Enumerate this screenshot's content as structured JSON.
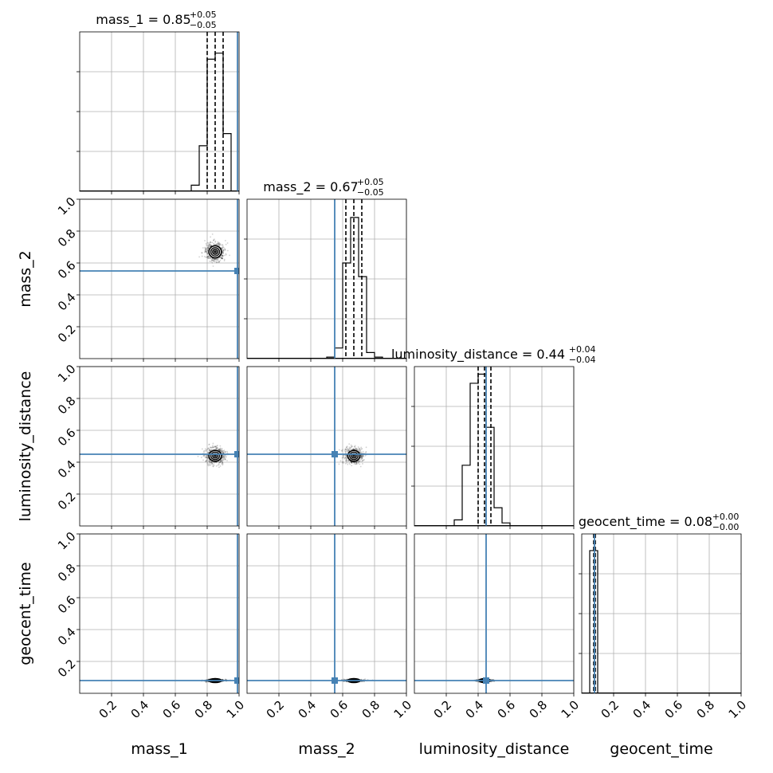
{
  "chart_data": {
    "type": "corner",
    "parameters": [
      "mass_1",
      "mass_2",
      "luminosity_distance",
      "geocent_time"
    ],
    "axis_range": [
      0,
      1
    ],
    "ticks": [
      0.2,
      0.4,
      0.6,
      0.8,
      1.0
    ],
    "tick_labels": [
      "0.2",
      "0.4",
      "0.6",
      "0.8",
      "1.0"
    ],
    "grid": true,
    "truth_color": "#4682b4",
    "truths": {
      "mass_1": 0.99,
      "mass_2": 0.55,
      "luminosity_distance": 0.45,
      "geocent_time": 0.08
    },
    "titles": [
      {
        "param": "mass_1",
        "text": "mass_1 = 0.85",
        "upper": "+0.05",
        "lower": "−0.05",
        "median": 0.85,
        "q_low": 0.8,
        "q_high": 0.9
      },
      {
        "param": "mass_2",
        "text": "mass_2 = 0.67",
        "upper": "+0.05",
        "lower": "−0.05",
        "median": 0.67,
        "q_low": 0.62,
        "q_high": 0.72
      },
      {
        "param": "luminosity_distance",
        "text": "luminosity_distance = 0.44",
        "upper": "+0.04",
        "lower": "−0.04",
        "median": 0.44,
        "q_low": 0.4,
        "q_high": 0.48
      },
      {
        "param": "geocent_time",
        "text": "geocent_time = 0.08",
        "upper": "+0.00",
        "lower": "−0.00",
        "median": 0.08,
        "q_low": 0.075,
        "q_high": 0.085
      }
    ],
    "histograms": {
      "mass_1": {
        "bin_width": 0.05,
        "bins": [
          {
            "x0": 0.7,
            "h": 0.04
          },
          {
            "x0": 0.75,
            "h": 0.3
          },
          {
            "x0": 0.8,
            "h": 0.87
          },
          {
            "x0": 0.85,
            "h": 0.91
          },
          {
            "x0": 0.9,
            "h": 0.38
          },
          {
            "x0": 0.95,
            "h": 0.0
          }
        ]
      },
      "mass_2": {
        "bin_width": 0.05,
        "bins": [
          {
            "x0": 0.5,
            "h": 0.01
          },
          {
            "x0": 0.55,
            "h": 0.07
          },
          {
            "x0": 0.6,
            "h": 0.63
          },
          {
            "x0": 0.65,
            "h": 0.93
          },
          {
            "x0": 0.7,
            "h": 0.54
          },
          {
            "x0": 0.75,
            "h": 0.04
          },
          {
            "x0": 0.8,
            "h": 0.01
          }
        ]
      },
      "luminosity_distance": {
        "bin_width": 0.05,
        "bins": [
          {
            "x0": 0.25,
            "h": 0.04
          },
          {
            "x0": 0.3,
            "h": 0.4
          },
          {
            "x0": 0.35,
            "h": 0.94
          },
          {
            "x0": 0.4,
            "h": 1.0
          },
          {
            "x0": 0.45,
            "h": 0.65
          },
          {
            "x0": 0.5,
            "h": 0.12
          },
          {
            "x0": 0.55,
            "h": 0.02
          }
        ]
      },
      "geocent_time": {
        "bin_width": 0.05,
        "bins": [
          {
            "x0": 0.05,
            "h": 0.94
          },
          {
            "x0": 0.1,
            "h": 0.0
          }
        ]
      }
    },
    "contours_2d": [
      {
        "x": "mass_1",
        "y": "mass_2",
        "cx": 0.85,
        "cy": 0.67,
        "sx": 0.052,
        "sy": 0.05
      },
      {
        "x": "mass_1",
        "y": "luminosity_distance",
        "cx": 0.85,
        "cy": 0.44,
        "sx": 0.052,
        "sy": 0.045
      },
      {
        "x": "mass_2",
        "y": "luminosity_distance",
        "cx": 0.67,
        "cy": 0.44,
        "sx": 0.05,
        "sy": 0.045
      },
      {
        "x": "mass_1",
        "y": "geocent_time",
        "cx": 0.85,
        "cy": 0.08,
        "sx": 0.052,
        "sy": 0.006
      },
      {
        "x": "mass_2",
        "y": "geocent_time",
        "cx": 0.67,
        "cy": 0.08,
        "sx": 0.05,
        "sy": 0.006
      },
      {
        "x": "luminosity_distance",
        "y": "geocent_time",
        "cx": 0.44,
        "cy": 0.08,
        "sx": 0.045,
        "sy": 0.006
      }
    ]
  }
}
